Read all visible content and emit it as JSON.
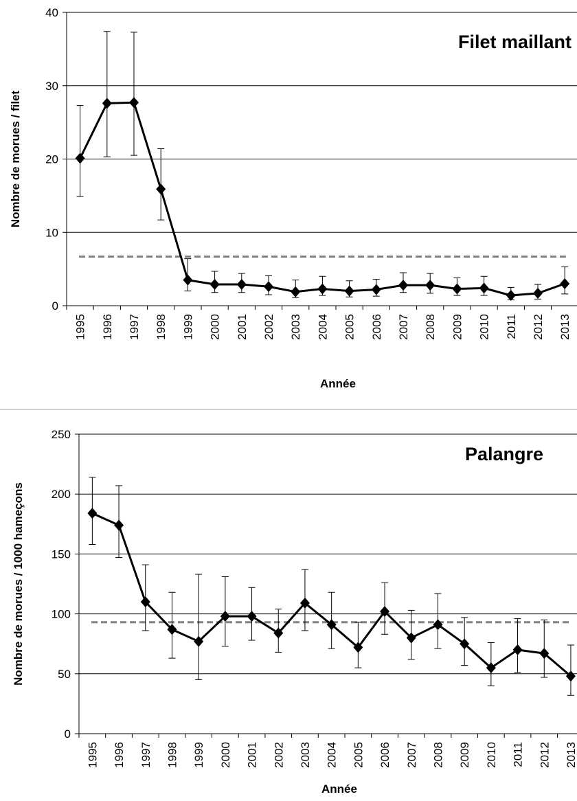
{
  "chart_data": [
    {
      "type": "line",
      "title": "Filet maillant",
      "x_label": "Année",
      "y_label": "Nombre de morues / filet",
      "categories": [
        "1995",
        "1996",
        "1997",
        "1998",
        "1999",
        "2000",
        "2001",
        "2002",
        "2003",
        "2004",
        "2005",
        "2006",
        "2007",
        "2008",
        "2009",
        "2010",
        "2011",
        "2012",
        "2013"
      ],
      "series": [
        {
          "color": "#000000",
          "values": [
            20.1,
            27.6,
            27.7,
            15.9,
            3.5,
            2.9,
            2.9,
            2.6,
            1.9,
            2.3,
            2.0,
            2.2,
            2.8,
            2.8,
            2.3,
            2.4,
            1.4,
            1.7,
            3.0
          ],
          "upper": [
            27.3,
            37.4,
            37.3,
            21.4,
            6.4,
            4.7,
            4.4,
            4.1,
            3.5,
            4.0,
            3.4,
            3.6,
            4.5,
            4.4,
            3.8,
            4.0,
            2.5,
            2.9,
            5.3
          ],
          "lower": [
            14.9,
            20.3,
            20.5,
            11.7,
            2.0,
            1.8,
            1.8,
            1.5,
            1.1,
            1.4,
            1.2,
            1.3,
            1.8,
            1.7,
            1.4,
            1.4,
            0.8,
            0.9,
            1.6
          ]
        }
      ],
      "reference_line": 6.7,
      "reference_color": "#808080",
      "ylim": [
        0,
        40
      ],
      "yticks": [
        0,
        10,
        20,
        30,
        40
      ],
      "grid": true
    },
    {
      "type": "line",
      "title": "Palangre",
      "x_label": "Année",
      "y_label": "Nombre de morues / 1000 hameçons",
      "categories": [
        "1995",
        "1996",
        "1997",
        "1998",
        "1999",
        "2000",
        "2001",
        "2002",
        "2003",
        "2004",
        "2005",
        "2006",
        "2007",
        "2008",
        "2009",
        "2010",
        "2011",
        "2012",
        "2013"
      ],
      "series": [
        {
          "color": "#000000",
          "values": [
            184,
            174,
            110,
            87,
            77,
            98,
            98,
            84,
            109,
            91,
            72,
            102,
            80,
            91,
            75,
            55,
            70,
            67,
            48
          ],
          "upper": [
            214,
            207,
            141,
            118,
            133,
            131,
            122,
            104,
            137,
            118,
            93,
            126,
            103,
            117,
            97,
            76,
            96,
            95,
            74
          ],
          "lower": [
            158,
            147,
            86,
            63,
            45,
            73,
            78,
            68,
            86,
            71,
            55,
            83,
            62,
            71,
            57,
            40,
            51,
            47,
            32
          ]
        }
      ],
      "reference_line": 93,
      "reference_color": "#808080",
      "ylim": [
        0,
        250
      ],
      "yticks": [
        0,
        50,
        100,
        150,
        200,
        250
      ],
      "grid": true
    }
  ]
}
